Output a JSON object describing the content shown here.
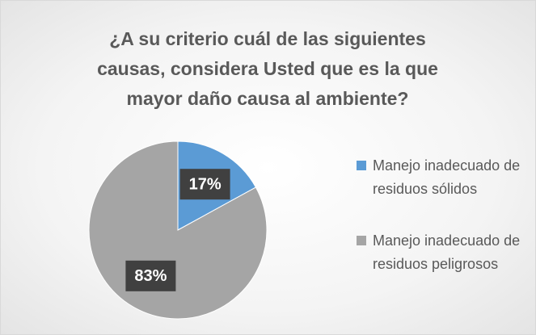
{
  "chart_data": {
    "type": "pie",
    "title": "¿A su criterio cuál de las siguientes causas, considera Usted que es la que mayor daño causa al ambiente?",
    "categories": [
      "Manejo inadecuado de residuos sólidos",
      "Manejo inadecuado de residuos peligrosos"
    ],
    "values": [
      17,
      83
    ],
    "value_labels": [
      "17%",
      "83%"
    ],
    "colors": [
      "#5b9bd5",
      "#a5a5a5"
    ],
    "legend": "right"
  }
}
